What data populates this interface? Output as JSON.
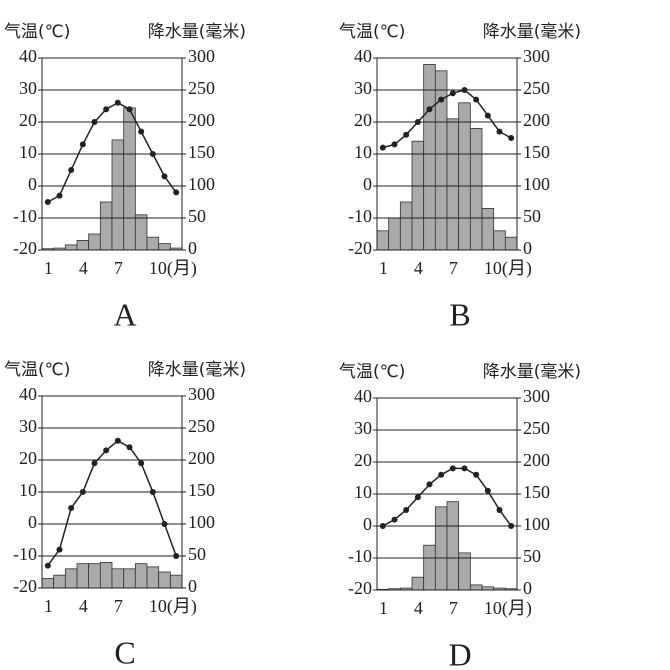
{
  "chart_data": [
    {
      "type": "climograph",
      "caption": "A",
      "y_label": "气温(℃)",
      "y2_label": "降水量(毫米)",
      "categories": [
        "1",
        null,
        null,
        "4",
        null,
        null,
        "7",
        null,
        null,
        "10(月)",
        null,
        null
      ],
      "ylim": [
        -20,
        40
      ],
      "yticks": [
        -20,
        -10,
        0,
        10,
        20,
        30,
        40
      ],
      "y2lim": [
        0,
        300
      ],
      "y2ticks": [
        0,
        50,
        100,
        150,
        200,
        250,
        300
      ],
      "grid": true,
      "series": [
        {
          "type": "bar",
          "axis": "y2",
          "color": "#aaaaaa",
          "values": [
            2,
            3,
            8,
            15,
            25,
            75,
            172,
            222,
            55,
            20,
            10,
            3
          ]
        },
        {
          "type": "line",
          "color": "#222222",
          "values": [
            -5,
            -3,
            5,
            13,
            20,
            24,
            26,
            24,
            17,
            10,
            3,
            -2
          ]
        }
      ]
    },
    {
      "type": "climograph",
      "caption": "B",
      "y_label": "气温(℃)",
      "y2_label": "降水量(毫米)",
      "categories": [
        "1",
        null,
        null,
        "4",
        null,
        null,
        "7",
        null,
        null,
        "10(月)",
        null,
        null
      ],
      "ylim": [
        -20,
        40
      ],
      "yticks": [
        -20,
        -10,
        0,
        10,
        20,
        30,
        40
      ],
      "y2lim": [
        0,
        300
      ],
      "y2ticks": [
        0,
        50,
        100,
        150,
        200,
        250,
        300
      ],
      "grid": true,
      "series": [
        {
          "type": "bar",
          "axis": "y2",
          "color": "#aaaaaa",
          "values": [
            30,
            50,
            75,
            170,
            290,
            280,
            205,
            230,
            190,
            65,
            30,
            20
          ]
        },
        {
          "type": "line",
          "color": "#222222",
          "values": [
            12,
            13,
            16,
            20,
            24,
            27,
            29,
            30,
            27,
            22,
            17,
            15
          ]
        }
      ]
    },
    {
      "type": "climograph",
      "caption": "C",
      "y_label": "气温(℃)",
      "y2_label": "降水量(毫米)",
      "categories": [
        "1",
        null,
        null,
        "4",
        null,
        null,
        "7",
        null,
        null,
        "10(月)",
        null,
        null
      ],
      "ylim": [
        -20,
        40
      ],
      "yticks": [
        -20,
        -10,
        0,
        10,
        20,
        30,
        40
      ],
      "y2lim": [
        0,
        300
      ],
      "y2ticks": [
        0,
        50,
        100,
        150,
        200,
        250,
        300
      ],
      "grid": true,
      "series": [
        {
          "type": "bar",
          "axis": "y2",
          "color": "#aaaaaa",
          "values": [
            15,
            20,
            30,
            38,
            38,
            40,
            30,
            30,
            38,
            33,
            25,
            20
          ]
        },
        {
          "type": "line",
          "color": "#222222",
          "values": [
            -13,
            -8,
            5,
            10,
            19,
            23,
            26,
            24,
            19,
            10,
            0,
            -10
          ]
        }
      ]
    },
    {
      "type": "climograph",
      "caption": "D",
      "y_label": "气温(℃)",
      "y2_label": "降水量(毫米)",
      "categories": [
        "1",
        null,
        null,
        "4",
        null,
        null,
        "7",
        null,
        null,
        "10(月)",
        null,
        null
      ],
      "ylim": [
        -20,
        40
      ],
      "yticks": [
        -20,
        -10,
        0,
        10,
        20,
        30,
        40
      ],
      "y2lim": [
        0,
        300
      ],
      "y2ticks": [
        0,
        50,
        100,
        150,
        200,
        250,
        300
      ],
      "grid": true,
      "series": [
        {
          "type": "bar",
          "axis": "y2",
          "color": "#aaaaaa",
          "values": [
            1,
            2,
            3,
            20,
            70,
            130,
            138,
            58,
            8,
            5,
            3,
            2
          ]
        },
        {
          "type": "line",
          "color": "#222222",
          "values": [
            0,
            2,
            5,
            9,
            13,
            16,
            18,
            18,
            16,
            11,
            5,
            0
          ]
        }
      ]
    }
  ]
}
